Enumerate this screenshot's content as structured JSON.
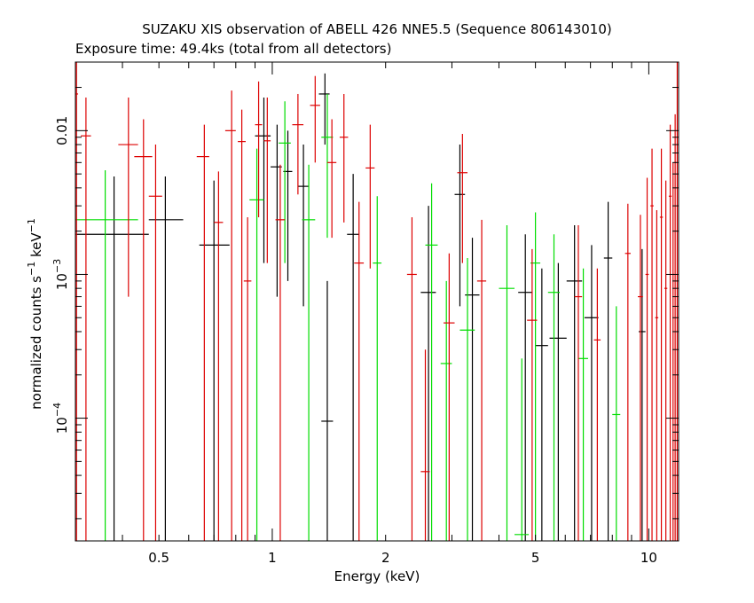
{
  "chart_data": {
    "type": "scatter",
    "title": "SUZAKU XIS observation of ABELL 426 NNE5.5 (Sequence 806143010)",
    "subtitle": "Exposure time: 49.4ks (total from all detectors)",
    "xlabel": "Energy (keV)",
    "ylabel": "normalized counts s-1 keV-1",
    "ylabel_parts": {
      "base": "normalized counts s",
      "exp1": "−1",
      "mid": " keV",
      "exp2": "−1"
    },
    "x_scale": "log",
    "y_scale": "log",
    "xlim": [
      0.3,
      12
    ],
    "ylim": [
      1.4e-05,
      0.03
    ],
    "x_tick_labels": [
      {
        "value": 0.5,
        "label": "0.5"
      },
      {
        "value": 1,
        "label": "1"
      },
      {
        "value": 2,
        "label": "2"
      },
      {
        "value": 5,
        "label": "5"
      },
      {
        "value": 10,
        "label": "10"
      }
    ],
    "y_tick_labels": [
      {
        "value": 0.0001,
        "base": "10",
        "exp": "−4"
      },
      {
        "value": 0.001,
        "base": "10",
        "exp": "−3"
      },
      {
        "value": 0.01,
        "base": "0.01",
        "exp": ""
      }
    ],
    "grid": false,
    "legend": "none",
    "series": [
      {
        "color": "#000000",
        "points": [
          {
            "x": 0.38,
            "xerr": [
              0.3,
              0.47
            ],
            "y": 0.0019,
            "yerr": [
              1.4e-05,
              0.0048
            ]
          },
          {
            "x": 0.52,
            "xerr": [
              0.47,
              0.58
            ],
            "y": 0.0024,
            "yerr": [
              1.4e-05,
              0.0048
            ]
          },
          {
            "x": 0.7,
            "xerr": [
              0.64,
              0.77
            ],
            "y": 0.0016,
            "yerr": [
              1.4e-05,
              0.0045
            ]
          },
          {
            "x": 0.95,
            "xerr": [
              0.9,
              0.99
            ],
            "y": 0.0092,
            "yerr": [
              0.0012,
              0.017
            ]
          },
          {
            "x": 1.03,
            "xerr": [
              0.99,
              1.06
            ],
            "y": 0.0056,
            "yerr": [
              0.0007,
              0.011
            ]
          },
          {
            "x": 1.1,
            "xerr": [
              1.07,
              1.13
            ],
            "y": 0.0052,
            "yerr": [
              0.0009,
              0.01
            ]
          },
          {
            "x": 1.21,
            "xerr": [
              1.17,
              1.25
            ],
            "y": 0.0041,
            "yerr": [
              0.0006,
              0.008
            ]
          },
          {
            "x": 1.38,
            "xerr": [
              1.33,
              1.42
            ],
            "y": 0.018,
            "yerr": [
              0.008,
              0.025
            ]
          },
          {
            "x": 1.4,
            "xerr": [
              1.35,
              1.45
            ],
            "y": 9.53e-05,
            "yerr": [
              1.4e-05,
              0.0009
            ]
          },
          {
            "x": 1.64,
            "xerr": [
              1.58,
              1.7
            ],
            "y": 0.0019,
            "yerr": [
              1.4e-05,
              0.005
            ]
          },
          {
            "x": 2.6,
            "xerr": [
              2.48,
              2.72
            ],
            "y": 0.00075,
            "yerr": [
              1.4e-05,
              0.003
            ]
          },
          {
            "x": 3.15,
            "xerr": [
              3.05,
              3.25
            ],
            "y": 0.0036,
            "yerr": [
              0.0006,
              0.008
            ]
          },
          {
            "x": 3.4,
            "xerr": [
              3.25,
              3.55
            ],
            "y": 0.00072,
            "yerr": [
              1.4e-05,
              0.0018
            ]
          },
          {
            "x": 4.7,
            "xerr": [
              4.5,
              4.9
            ],
            "y": 0.00075,
            "yerr": [
              1.4e-05,
              0.0019
            ]
          },
          {
            "x": 5.2,
            "xerr": [
              5.0,
              5.4
            ],
            "y": 0.00032,
            "yerr": [
              1.4e-05,
              0.0011
            ]
          },
          {
            "x": 5.75,
            "xerr": [
              5.45,
              6.05
            ],
            "y": 0.00036,
            "yerr": [
              1.4e-05,
              0.0012
            ]
          },
          {
            "x": 6.35,
            "xerr": [
              6.05,
              6.65
            ],
            "y": 0.0009,
            "yerr": [
              1.4e-05,
              0.0022
            ]
          },
          {
            "x": 7.05,
            "xerr": [
              6.75,
              7.35
            ],
            "y": 0.0005,
            "yerr": [
              1.4e-05,
              0.0016
            ]
          },
          {
            "x": 7.8,
            "xerr": [
              7.6,
              8.0
            ],
            "y": 0.0013,
            "yerr": [
              1.4e-05,
              0.0032
            ]
          },
          {
            "x": 9.6,
            "xerr": [
              9.4,
              9.8
            ],
            "y": 0.0004,
            "yerr": [
              1.4e-05,
              0.0015
            ]
          }
        ]
      },
      {
        "color": "#00dd00",
        "points": [
          {
            "x": 0.36,
            "xerr": [
              0.3,
              0.44
            ],
            "y": 0.0024,
            "yerr": [
              1.4e-05,
              0.0053
            ]
          },
          {
            "x": 0.91,
            "xerr": [
              0.87,
              0.95
            ],
            "y": 0.0033,
            "yerr": [
              1.4e-05,
              0.0075
            ]
          },
          {
            "x": 1.08,
            "xerr": [
              1.04,
              1.12
            ],
            "y": 0.0082,
            "yerr": [
              0.0012,
              0.016
            ]
          },
          {
            "x": 1.25,
            "xerr": [
              1.2,
              1.3
            ],
            "y": 0.0024,
            "yerr": [
              1.4e-05,
              0.0058
            ]
          },
          {
            "x": 1.4,
            "xerr": [
              1.35,
              1.45
            ],
            "y": 0.009,
            "yerr": [
              0.0018,
              0.018
            ]
          },
          {
            "x": 1.9,
            "xerr": [
              1.85,
              1.95
            ],
            "y": 0.0012,
            "yerr": [
              1.4e-05,
              0.0035
            ]
          },
          {
            "x": 2.65,
            "xerr": [
              2.55,
              2.75
            ],
            "y": 0.0016,
            "yerr": [
              1.4e-05,
              0.0043
            ]
          },
          {
            "x": 2.9,
            "xerr": [
              2.8,
              3.0
            ],
            "y": 0.00024,
            "yerr": [
              1.4e-05,
              0.0009
            ]
          },
          {
            "x": 3.3,
            "xerr": [
              3.15,
              3.45
            ],
            "y": 0.00041,
            "yerr": [
              1.4e-05,
              0.0013
            ]
          },
          {
            "x": 4.2,
            "xerr": [
              4.0,
              4.4
            ],
            "y": 0.0008,
            "yerr": [
              1.4e-05,
              0.0022
            ]
          },
          {
            "x": 4.6,
            "xerr": [
              4.4,
              4.8
            ],
            "y": 1.55e-05,
            "yerr": [
              1.4e-05,
              0.00026
            ]
          },
          {
            "x": 5.0,
            "xerr": [
              4.85,
              5.15
            ],
            "y": 0.0012,
            "yerr": [
              1.4e-05,
              0.0027
            ]
          },
          {
            "x": 5.6,
            "xerr": [
              5.4,
              5.8
            ],
            "y": 0.00075,
            "yerr": [
              1.4e-05,
              0.0019
            ]
          },
          {
            "x": 6.7,
            "xerr": [
              6.5,
              6.9
            ],
            "y": 0.00026,
            "yerr": [
              1.4e-05,
              0.0011
            ]
          },
          {
            "x": 8.2,
            "xerr": [
              8.0,
              8.4
            ],
            "y": 0.000106,
            "yerr": [
              1.4e-05,
              0.0006
            ]
          }
        ]
      },
      {
        "color": "#dd0000",
        "points": [
          {
            "x": 0.302,
            "xerr": [
              0.3,
              0.305
            ],
            "y": 0.018,
            "yerr": [
              1.4e-05,
              0.03
            ]
          },
          {
            "x": 0.32,
            "xerr": [
              0.31,
              0.33
            ],
            "y": 0.0092,
            "yerr": [
              1.4e-05,
              0.017
            ]
          },
          {
            "x": 0.415,
            "xerr": [
              0.39,
              0.44
            ],
            "y": 0.008,
            "yerr": [
              0.0007,
              0.017
            ]
          },
          {
            "x": 0.455,
            "xerr": [
              0.43,
              0.48
            ],
            "y": 0.0066,
            "yerr": [
              1.4e-05,
              0.012
            ]
          },
          {
            "x": 0.49,
            "xerr": [
              0.47,
              0.51
            ],
            "y": 0.0035,
            "yerr": [
              1.4e-05,
              0.008
            ]
          },
          {
            "x": 0.66,
            "xerr": [
              0.63,
              0.68
            ],
            "y": 0.0066,
            "yerr": [
              1.4e-05,
              0.011
            ]
          },
          {
            "x": 0.72,
            "xerr": [
              0.7,
              0.74
            ],
            "y": 0.0023,
            "yerr": [
              1.4e-05,
              0.0052
            ]
          },
          {
            "x": 0.78,
            "xerr": [
              0.75,
              0.8
            ],
            "y": 0.01,
            "yerr": [
              1.4e-05,
              0.019
            ]
          },
          {
            "x": 0.83,
            "xerr": [
              0.81,
              0.85
            ],
            "y": 0.0084,
            "yerr": [
              1.4e-05,
              0.014
            ]
          },
          {
            "x": 0.86,
            "xerr": [
              0.84,
              0.88
            ],
            "y": 0.0009,
            "yerr": [
              1.4e-05,
              0.0025
            ]
          },
          {
            "x": 0.92,
            "xerr": [
              0.9,
              0.94
            ],
            "y": 0.011,
            "yerr": [
              0.0025,
              0.022
            ]
          },
          {
            "x": 0.97,
            "xerr": [
              0.95,
              0.99
            ],
            "y": 0.0085,
            "yerr": [
              0.0012,
              0.017
            ]
          },
          {
            "x": 1.05,
            "xerr": [
              1.02,
              1.08
            ],
            "y": 0.0024,
            "yerr": [
              1.4e-05,
              0.0058
            ]
          },
          {
            "x": 1.17,
            "xerr": [
              1.13,
              1.21
            ],
            "y": 0.011,
            "yerr": [
              0.0036,
              0.018
            ]
          },
          {
            "x": 1.3,
            "xerr": [
              1.26,
              1.34
            ],
            "y": 0.015,
            "yerr": [
              0.006,
              0.024
            ]
          },
          {
            "x": 1.44,
            "xerr": [
              1.4,
              1.48
            ],
            "y": 0.006,
            "yerr": [
              0.0018,
              0.012
            ]
          },
          {
            "x": 1.55,
            "xerr": [
              1.51,
              1.59
            ],
            "y": 0.009,
            "yerr": [
              0.0023,
              0.018
            ]
          },
          {
            "x": 1.7,
            "xerr": [
              1.65,
              1.75
            ],
            "y": 0.0012,
            "yerr": [
              1.4e-05,
              0.0032
            ]
          },
          {
            "x": 1.82,
            "xerr": [
              1.77,
              1.87
            ],
            "y": 0.0055,
            "yerr": [
              0.0011,
              0.011
            ]
          },
          {
            "x": 2.35,
            "xerr": [
              2.28,
              2.42
            ],
            "y": 0.001,
            "yerr": [
              1.4e-05,
              0.0025
            ]
          },
          {
            "x": 2.55,
            "xerr": [
              2.48,
              2.62
            ],
            "y": 4.25e-05,
            "yerr": [
              1.4e-05,
              0.0003
            ]
          },
          {
            "x": 2.95,
            "xerr": [
              2.85,
              3.05
            ],
            "y": 0.00046,
            "yerr": [
              1.4e-05,
              0.0014
            ]
          },
          {
            "x": 3.2,
            "xerr": [
              3.1,
              3.3
            ],
            "y": 0.0051,
            "yerr": [
              0.0012,
              0.0095
            ]
          },
          {
            "x": 3.6,
            "xerr": [
              3.5,
              3.7
            ],
            "y": 0.0009,
            "yerr": [
              1.4e-05,
              0.0024
            ]
          },
          {
            "x": 4.9,
            "xerr": [
              4.75,
              5.05
            ],
            "y": 0.00048,
            "yerr": [
              1.4e-05,
              0.0015
            ]
          },
          {
            "x": 6.5,
            "xerr": [
              6.35,
              6.65
            ],
            "y": 0.0007,
            "yerr": [
              1.4e-05,
              0.0022
            ]
          },
          {
            "x": 7.3,
            "xerr": [
              7.15,
              7.45
            ],
            "y": 0.00035,
            "yerr": [
              1.4e-05,
              0.0011
            ]
          },
          {
            "x": 8.8,
            "xerr": [
              8.65,
              8.95
            ],
            "y": 0.0014,
            "yerr": [
              1.4e-05,
              0.0031
            ]
          },
          {
            "x": 9.5,
            "xerr": [
              9.35,
              9.65
            ],
            "y": 0.0007,
            "yerr": [
              1.4e-05,
              0.0026
            ]
          },
          {
            "x": 9.9,
            "xerr": [
              9.8,
              10.0
            ],
            "y": 0.001,
            "yerr": [
              1.4e-05,
              0.0047
            ]
          },
          {
            "x": 10.2,
            "xerr": [
              10.1,
              10.3
            ],
            "y": 0.003,
            "yerr": [
              1.4e-05,
              0.0075
            ]
          },
          {
            "x": 10.5,
            "xerr": [
              10.4,
              10.6
            ],
            "y": 0.0005,
            "yerr": [
              1.4e-05,
              0.0028
            ]
          },
          {
            "x": 10.8,
            "xerr": [
              10.7,
              10.9
            ],
            "y": 0.0025,
            "yerr": [
              1.4e-05,
              0.0075
            ]
          },
          {
            "x": 11.1,
            "xerr": [
              11.0,
              11.2
            ],
            "y": 0.0008,
            "yerr": [
              1.4e-05,
              0.0045
            ]
          },
          {
            "x": 11.4,
            "xerr": [
              11.3,
              11.5
            ],
            "y": 0.0035,
            "yerr": [
              1.4e-05,
              0.011
            ]
          },
          {
            "x": 11.6,
            "xerr": [
              11.55,
              11.68
            ],
            "y": 0.001,
            "yerr": [
              1.4e-05,
              0.006
            ]
          },
          {
            "x": 11.75,
            "xerr": [
              11.7,
              11.82
            ],
            "y": 0.006,
            "yerr": [
              1.4e-05,
              0.013
            ]
          },
          {
            "x": 11.9,
            "xerr": [
              11.85,
              11.97
            ],
            "y": 0.02,
            "yerr": [
              1.4e-05,
              0.03
            ]
          }
        ]
      }
    ]
  }
}
